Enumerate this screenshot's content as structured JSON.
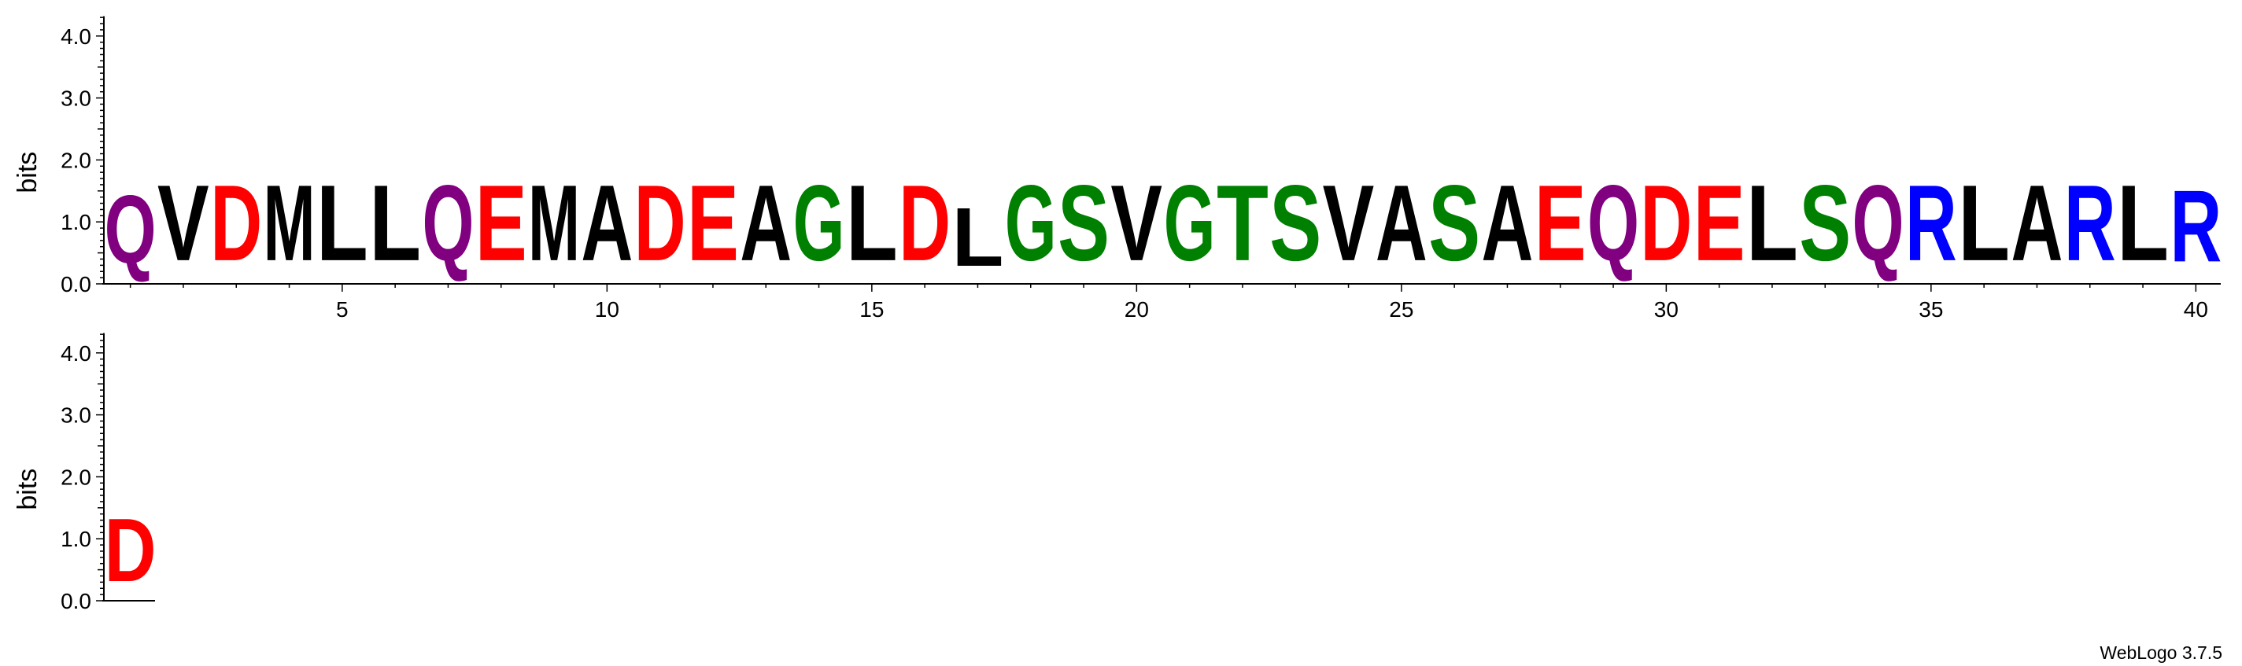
{
  "chart_data": [
    {
      "type": "sequence-logo",
      "ylabel": "bits",
      "ylim": [
        0,
        4.32
      ],
      "y_ticks": [
        "0.0",
        "1.0",
        "2.0",
        "3.0",
        "4.0"
      ],
      "x_ticks": [
        {
          "pos": 5,
          "label": "5"
        },
        {
          "pos": 10,
          "label": "10"
        },
        {
          "pos": 15,
          "label": "15"
        },
        {
          "pos": 20,
          "label": "20"
        },
        {
          "pos": 25,
          "label": "25"
        },
        {
          "pos": 30,
          "label": "30"
        },
        {
          "pos": 35,
          "label": "35"
        },
        {
          "pos": 40,
          "label": "40"
        }
      ],
      "positions": [
        {
          "pos": 1,
          "letter": "Q",
          "bits": 1.75
        },
        {
          "pos": 2,
          "letter": "V",
          "bits": 1.95
        },
        {
          "pos": 3,
          "letter": "D",
          "bits": 1.95
        },
        {
          "pos": 4,
          "letter": "M",
          "bits": 1.95
        },
        {
          "pos": 5,
          "letter": "L",
          "bits": 1.95
        },
        {
          "pos": 6,
          "letter": "L",
          "bits": 1.95
        },
        {
          "pos": 7,
          "letter": "Q",
          "bits": 1.95
        },
        {
          "pos": 8,
          "letter": "E",
          "bits": 1.95
        },
        {
          "pos": 9,
          "letter": "M",
          "bits": 1.95
        },
        {
          "pos": 10,
          "letter": "A",
          "bits": 1.95
        },
        {
          "pos": 11,
          "letter": "D",
          "bits": 1.95
        },
        {
          "pos": 12,
          "letter": "E",
          "bits": 1.95
        },
        {
          "pos": 13,
          "letter": "A",
          "bits": 1.95
        },
        {
          "pos": 14,
          "letter": "G",
          "bits": 1.95
        },
        {
          "pos": 15,
          "letter": "L",
          "bits": 1.95
        },
        {
          "pos": 16,
          "letter": "D",
          "bits": 1.95
        },
        {
          "pos": 17,
          "letter": "L",
          "bits": 1.5
        },
        {
          "pos": 18,
          "letter": "G",
          "bits": 1.95
        },
        {
          "pos": 19,
          "letter": "S",
          "bits": 1.95
        },
        {
          "pos": 20,
          "letter": "V",
          "bits": 1.95
        },
        {
          "pos": 21,
          "letter": "G",
          "bits": 1.95
        },
        {
          "pos": 22,
          "letter": "T",
          "bits": 1.95
        },
        {
          "pos": 23,
          "letter": "S",
          "bits": 1.95
        },
        {
          "pos": 24,
          "letter": "V",
          "bits": 1.95
        },
        {
          "pos": 25,
          "letter": "A",
          "bits": 1.95
        },
        {
          "pos": 26,
          "letter": "S",
          "bits": 1.95
        },
        {
          "pos": 27,
          "letter": "A",
          "bits": 1.95
        },
        {
          "pos": 28,
          "letter": "E",
          "bits": 1.95
        },
        {
          "pos": 29,
          "letter": "Q",
          "bits": 1.95
        },
        {
          "pos": 30,
          "letter": "D",
          "bits": 1.95
        },
        {
          "pos": 31,
          "letter": "E",
          "bits": 1.95
        },
        {
          "pos": 32,
          "letter": "L",
          "bits": 1.95
        },
        {
          "pos": 33,
          "letter": "S",
          "bits": 1.95
        },
        {
          "pos": 34,
          "letter": "Q",
          "bits": 1.95
        },
        {
          "pos": 35,
          "letter": "R",
          "bits": 1.95
        },
        {
          "pos": 36,
          "letter": "L",
          "bits": 1.95
        },
        {
          "pos": 37,
          "letter": "A",
          "bits": 1.95
        },
        {
          "pos": 38,
          "letter": "R",
          "bits": 1.95
        },
        {
          "pos": 39,
          "letter": "L",
          "bits": 1.95
        },
        {
          "pos": 40,
          "letter": "R",
          "bits": 1.85
        }
      ]
    },
    {
      "type": "sequence-logo",
      "ylabel": "bits",
      "ylim": [
        0,
        4.32
      ],
      "y_ticks": [
        "0.0",
        "1.0",
        "2.0",
        "3.0",
        "4.0"
      ],
      "x_ticks": [],
      "positions": [
        {
          "pos": 41,
          "letter": "D",
          "bits": 1.62
        }
      ]
    }
  ],
  "colors": {
    "Q": "#800080",
    "V": "#000000",
    "D": "#ff0000",
    "M": "#000000",
    "L": "#000000",
    "E": "#ff0000",
    "A": "#000000",
    "G": "#008000",
    "S": "#008000",
    "T": "#008000",
    "R": "#0000ff"
  },
  "footer": {
    "version": "WebLogo 3.7.5"
  }
}
